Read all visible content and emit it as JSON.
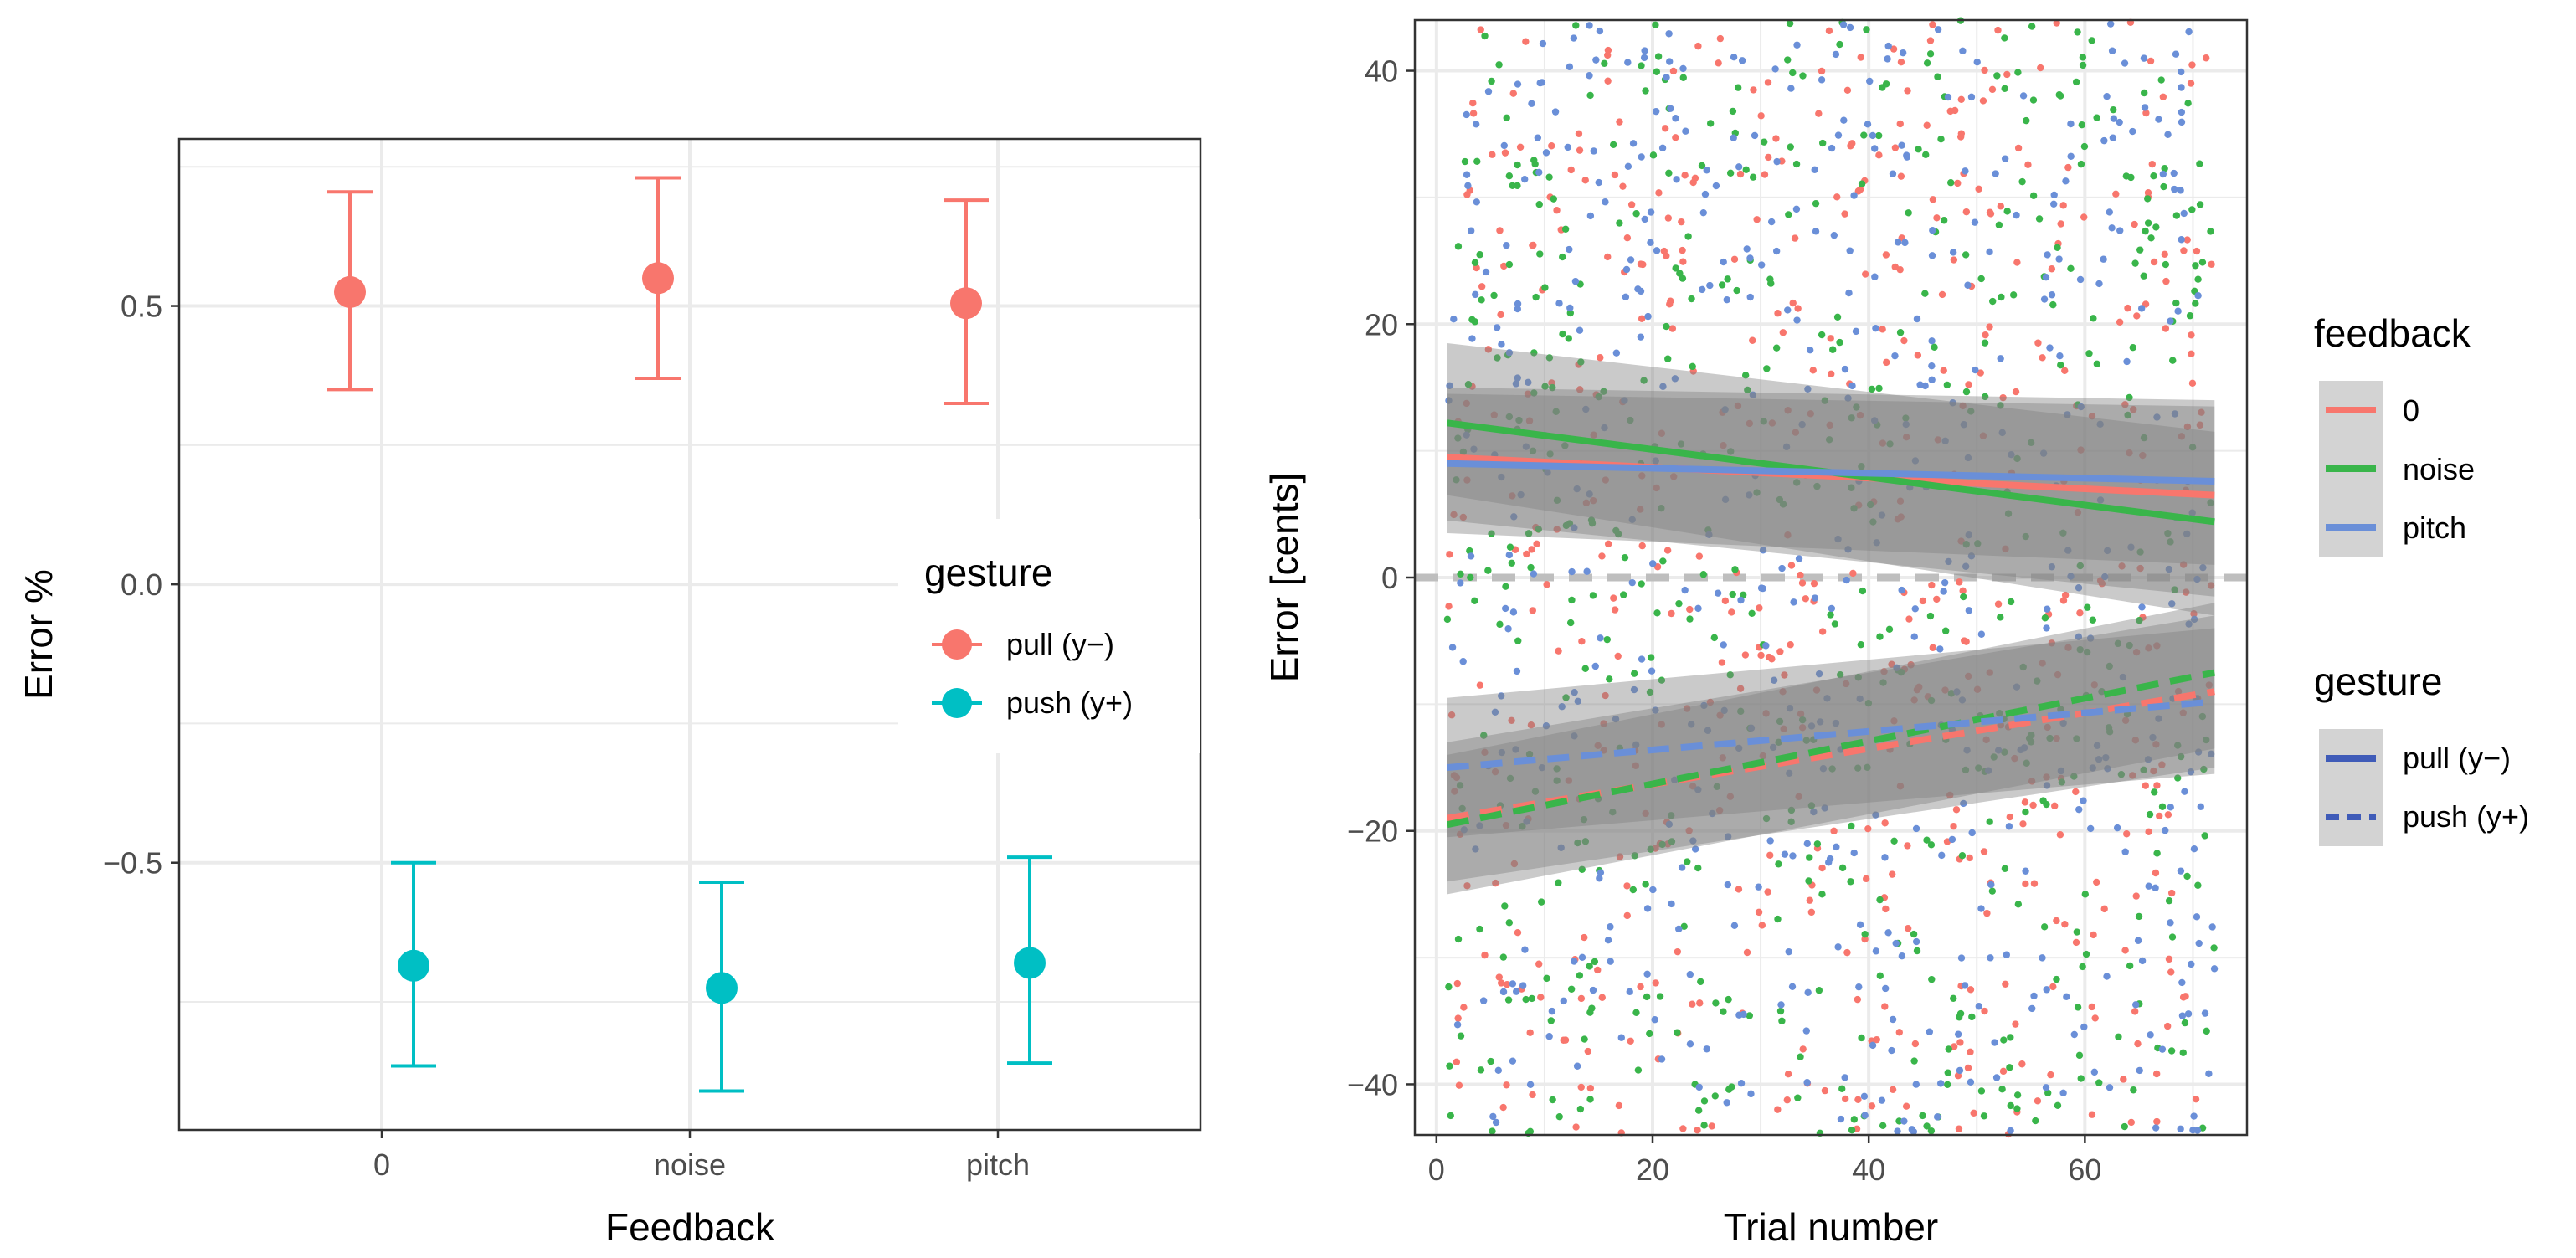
{
  "chart_data": [
    {
      "type": "scatter",
      "subtype": "point-errorbar",
      "xlabel": "Feedback",
      "ylabel": "Error %",
      "categories": [
        "0",
        "noise",
        "pitch"
      ],
      "yticks": [
        0.5,
        0.0,
        -0.5
      ],
      "ytick_labels": [
        "0.5",
        "0.0",
        "−0.5"
      ],
      "ylim": [
        -0.98,
        0.8
      ],
      "grid": true,
      "legend": {
        "title": "gesture",
        "placement": "inside-right",
        "entries": [
          "pull (y−)",
          "push (y+)"
        ]
      },
      "series": [
        {
          "name": "pull (y−)",
          "color": "#F8766D",
          "dodge": -1,
          "mean": [
            0.525,
            0.55,
            0.505
          ],
          "lower": [
            0.35,
            0.37,
            0.325
          ],
          "upper": [
            0.705,
            0.73,
            0.69
          ]
        },
        {
          "name": "push (y+)",
          "color": "#00BFC4",
          "dodge": 1,
          "mean": [
            -0.685,
            -0.725,
            -0.68
          ],
          "lower": [
            -0.865,
            -0.91,
            -0.86
          ],
          "upper": [
            -0.5,
            -0.535,
            -0.49
          ]
        }
      ]
    },
    {
      "type": "scatter",
      "subtype": "scatter-with-linear-fit",
      "xlabel": "Trial number",
      "ylabel": "Error [cents]",
      "xticks": [
        0,
        20,
        40,
        60
      ],
      "yticks": [
        40,
        20,
        0,
        -20,
        -40
      ],
      "ytick_labels": [
        "40",
        "20",
        "0",
        "−20",
        "−40"
      ],
      "xlim": [
        -2,
        75
      ],
      "ylim": [
        -44,
        44
      ],
      "grid": true,
      "reference_line": {
        "y": 0,
        "style": "dashed",
        "color": "#BEBEBE"
      },
      "legends": [
        {
          "title": "feedback",
          "placement": "right",
          "entries": [
            {
              "label": "0",
              "color": "#F8766D"
            },
            {
              "label": "noise",
              "color": "#39B54A"
            },
            {
              "label": "pitch",
              "color": "#6A8FD8"
            }
          ]
        },
        {
          "title": "gesture",
          "placement": "right",
          "entries": [
            {
              "label": "pull (y−)",
              "linestyle": "solid"
            },
            {
              "label": "push (y+)",
              "linestyle": "dashed"
            }
          ]
        }
      ],
      "fit_lines": [
        {
          "feedback": "0",
          "gesture": "pull (y−)",
          "color": "#F8766D",
          "x": [
            1,
            72
          ],
          "y": [
            9.5,
            6.5
          ],
          "band": [
            [
              4.5,
              14.5
            ],
            [
              -1.5,
              13.5
            ]
          ]
        },
        {
          "feedback": "noise",
          "gesture": "pull (y−)",
          "color": "#39B54A",
          "x": [
            1,
            72
          ],
          "y": [
            12.2,
            4.4
          ],
          "band": [
            [
              6.5,
              18.5
            ],
            [
              -3.0,
              11.5
            ]
          ]
        },
        {
          "feedback": "pitch",
          "gesture": "pull (y−)",
          "color": "#6A8FD8",
          "x": [
            1,
            72
          ],
          "y": [
            9.0,
            7.6
          ],
          "band": [
            [
              3.5,
              15.0
            ],
            [
              1.0,
              14.0
            ]
          ]
        },
        {
          "feedback": "0",
          "gesture": "push (y+)",
          "color": "#F8766D",
          "x": [
            1,
            72
          ],
          "y": [
            -19.0,
            -9.0
          ],
          "band": [
            [
              -24.0,
              -13.0
            ],
            [
              -15.0,
              -3.0
            ]
          ]
        },
        {
          "feedback": "noise",
          "gesture": "push (y+)",
          "color": "#39B54A",
          "x": [
            1,
            72
          ],
          "y": [
            -19.5,
            -7.5
          ],
          "band": [
            [
              -25.0,
              -14.0
            ],
            [
              -13.5,
              -2.0
            ]
          ]
        },
        {
          "feedback": "pitch",
          "gesture": "push (y+)",
          "color": "#6A8FD8",
          "x": [
            1,
            72
          ],
          "y": [
            -15.0,
            -9.8
          ],
          "band": [
            [
              -20.5,
              -9.5
            ],
            [
              -15.5,
              -4.0
            ]
          ]
        }
      ],
      "points": {
        "n_trials": 72,
        "groups": [
          "0",
          "noise",
          "pitch"
        ],
        "note": "individual trial errors per participant, roughly uniformly spread between -44 and 44 cents across all trials"
      }
    }
  ]
}
